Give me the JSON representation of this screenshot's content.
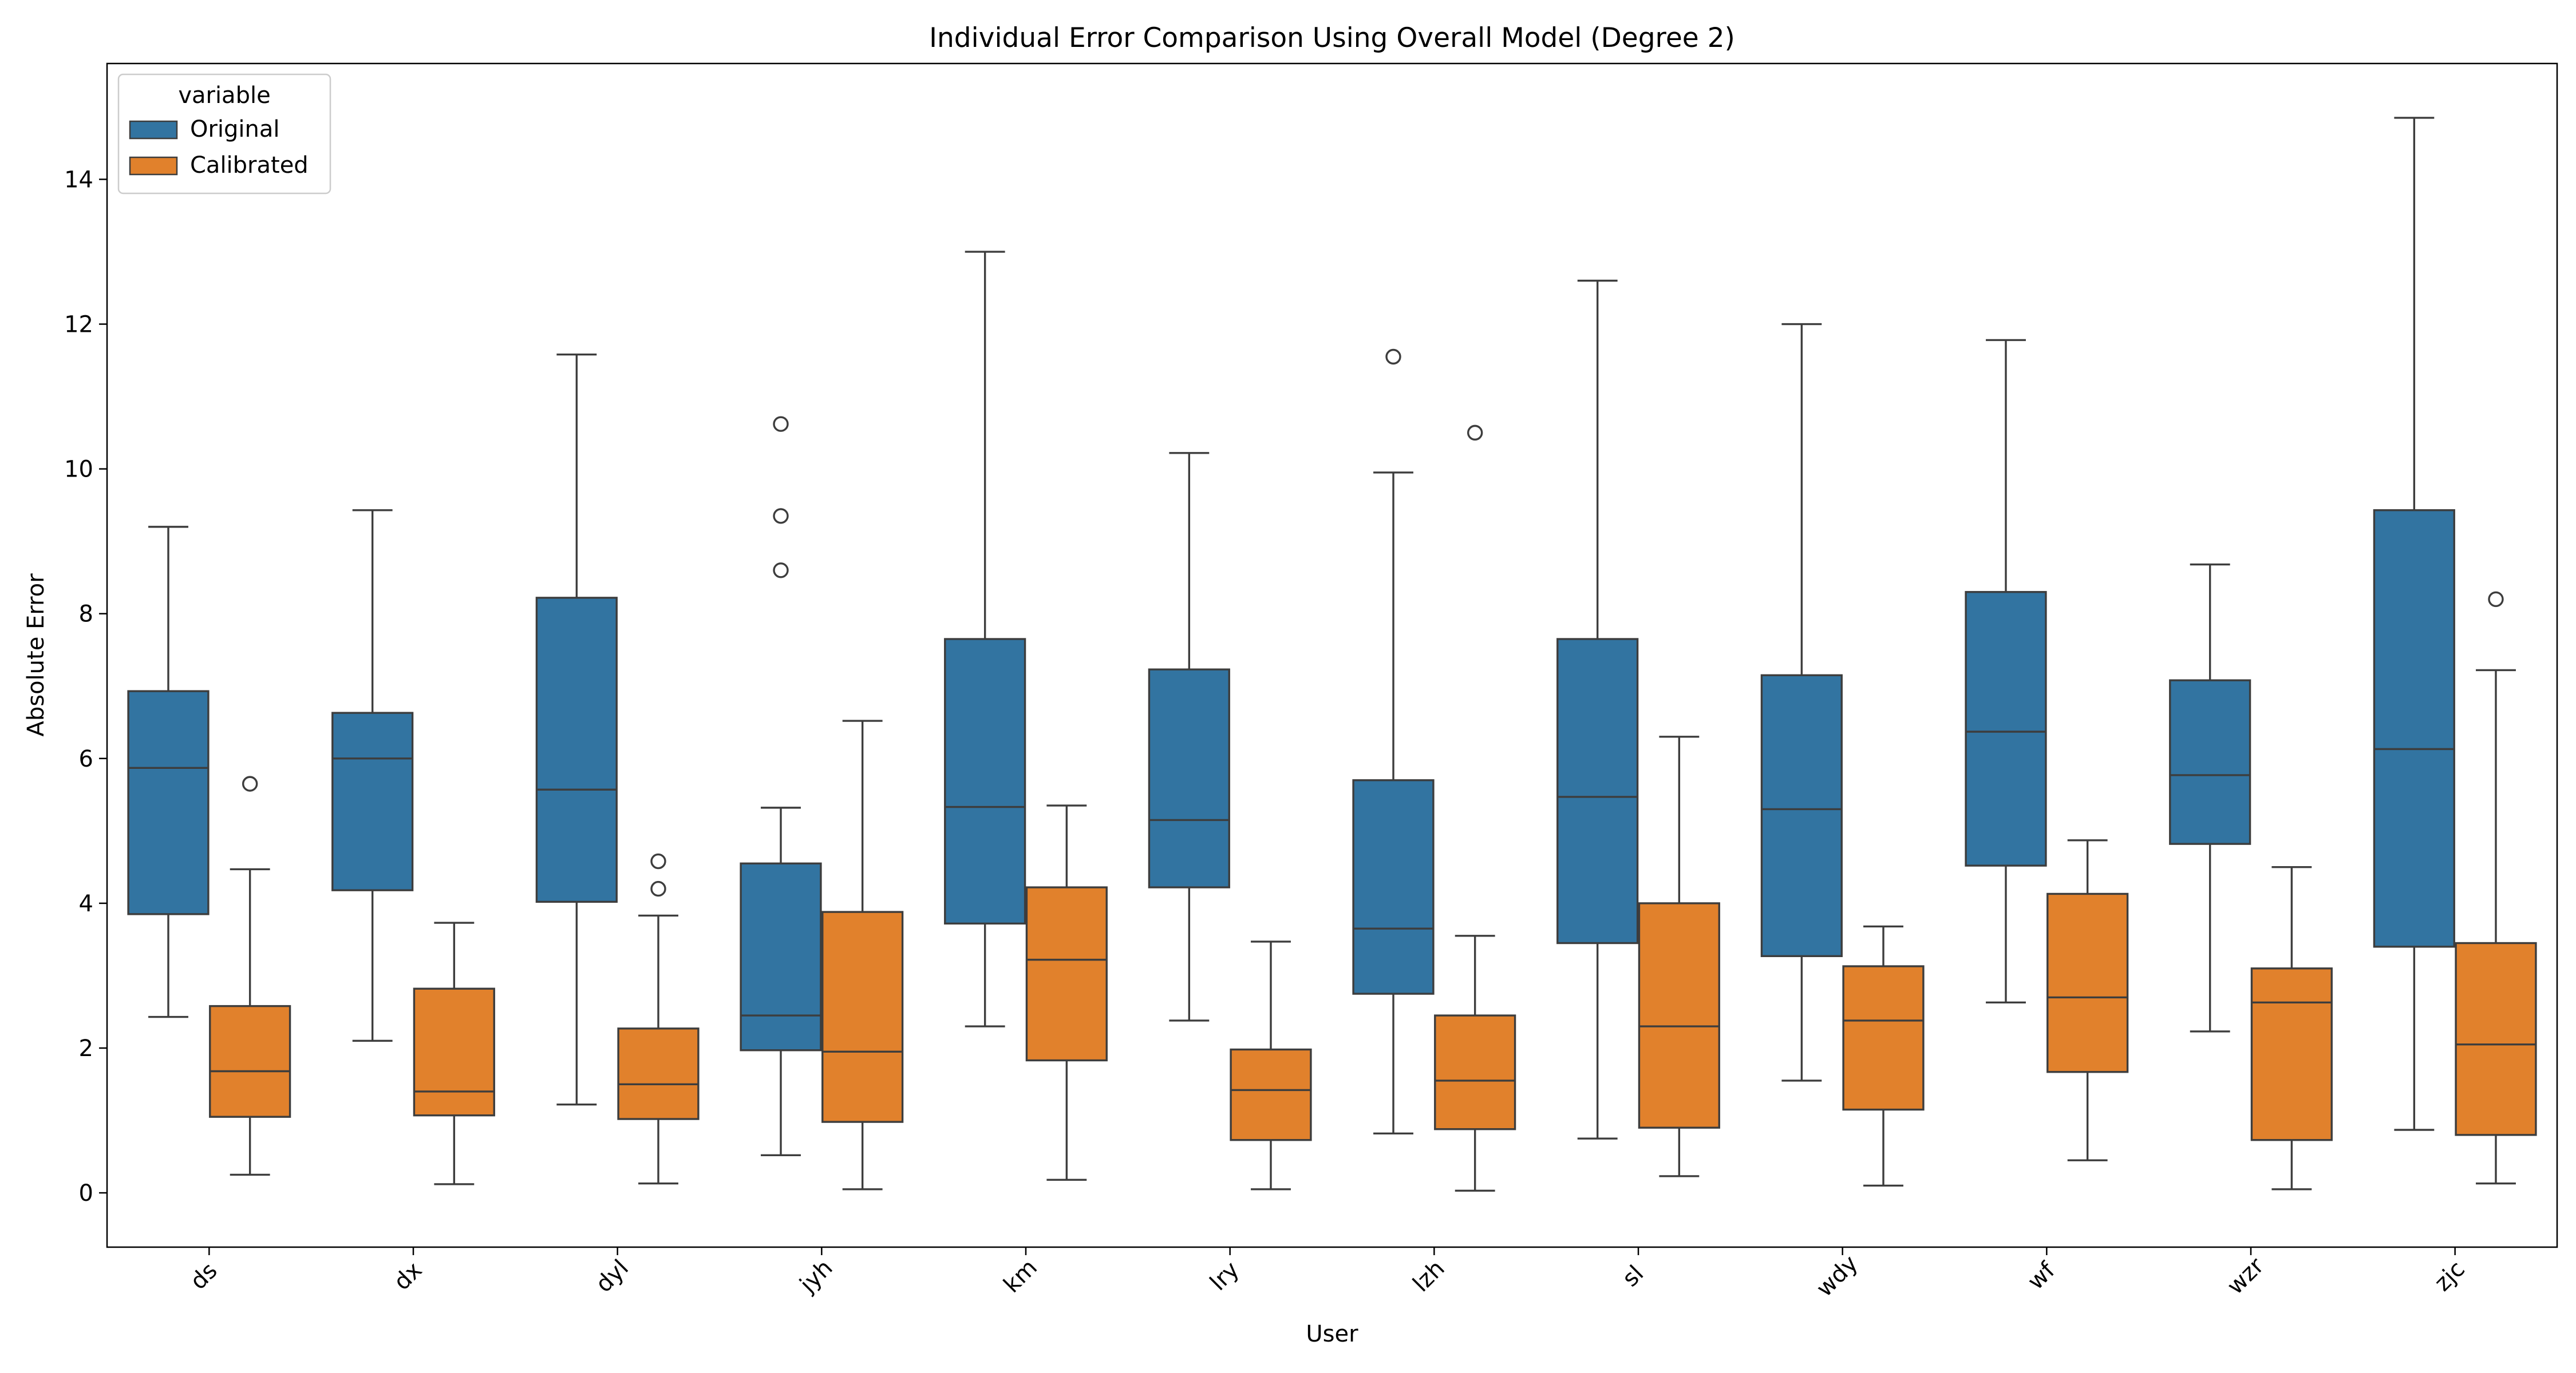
{
  "colors": {
    "Original": "#3274a1",
    "Calibrated": "#e1812c",
    "edge": "#3d3d3d"
  },
  "chart_data": {
    "type": "box",
    "title": "Individual Error Comparison Using Overall Model (Degree 2)",
    "xlabel": "User",
    "ylabel": "Absolute Error",
    "ylim": [
      -0.75,
      15.6
    ],
    "yticks": [
      0,
      2,
      4,
      6,
      8,
      10,
      12,
      14
    ],
    "ytick_labels": [
      "0",
      "2",
      "4",
      "6",
      "8",
      "10",
      "12",
      "14"
    ],
    "categories": [
      "ds",
      "dx",
      "dyl",
      "jyh",
      "km",
      "lry",
      "lzh",
      "sl",
      "wdy",
      "wf",
      "wzr",
      "zjc"
    ],
    "legend": {
      "title": "variable",
      "position": "upper left",
      "entries": [
        "Original",
        "Calibrated"
      ]
    },
    "grid": false,
    "series": [
      {
        "name": "Original",
        "boxes": [
          {
            "whislo": 2.43,
            "q1": 3.85,
            "med": 5.87,
            "q3": 6.93,
            "whishi": 9.2,
            "fliers": []
          },
          {
            "whislo": 2.1,
            "q1": 4.18,
            "med": 6.0,
            "q3": 6.63,
            "whishi": 9.43,
            "fliers": []
          },
          {
            "whislo": 1.22,
            "q1": 4.02,
            "med": 5.57,
            "q3": 8.22,
            "whishi": 11.58,
            "fliers": []
          },
          {
            "whislo": 0.52,
            "q1": 1.97,
            "med": 2.45,
            "q3": 4.55,
            "whishi": 5.32,
            "fliers": [
              8.6,
              9.35,
              10.62
            ]
          },
          {
            "whislo": 2.3,
            "q1": 3.72,
            "med": 5.33,
            "q3": 7.65,
            "whishi": 13.0,
            "fliers": []
          },
          {
            "whislo": 2.38,
            "q1": 4.22,
            "med": 5.15,
            "q3": 7.23,
            "whishi": 10.22,
            "fliers": []
          },
          {
            "whislo": 0.82,
            "q1": 2.75,
            "med": 3.65,
            "q3": 5.7,
            "whishi": 9.95,
            "fliers": [
              11.55
            ]
          },
          {
            "whislo": 0.75,
            "q1": 3.45,
            "med": 5.47,
            "q3": 7.65,
            "whishi": 12.6,
            "fliers": []
          },
          {
            "whislo": 1.55,
            "q1": 3.27,
            "med": 5.3,
            "q3": 7.15,
            "whishi": 12.0,
            "fliers": []
          },
          {
            "whislo": 2.63,
            "q1": 4.52,
            "med": 6.37,
            "q3": 8.3,
            "whishi": 11.78,
            "fliers": []
          },
          {
            "whislo": 2.23,
            "q1": 4.82,
            "med": 5.77,
            "q3": 7.08,
            "whishi": 8.68,
            "fliers": []
          },
          {
            "whislo": 0.87,
            "q1": 3.4,
            "med": 6.13,
            "q3": 9.43,
            "whishi": 14.85,
            "fliers": []
          }
        ]
      },
      {
        "name": "Calibrated",
        "boxes": [
          {
            "whislo": 0.25,
            "q1": 1.05,
            "med": 1.68,
            "q3": 2.58,
            "whishi": 4.47,
            "fliers": [
              5.65
            ]
          },
          {
            "whislo": 0.12,
            "q1": 1.07,
            "med": 1.4,
            "q3": 2.82,
            "whishi": 3.73,
            "fliers": []
          },
          {
            "whislo": 0.13,
            "q1": 1.02,
            "med": 1.5,
            "q3": 2.27,
            "whishi": 3.83,
            "fliers": [
              4.2,
              4.58
            ]
          },
          {
            "whislo": 0.05,
            "q1": 0.98,
            "med": 1.95,
            "q3": 3.88,
            "whishi": 6.52,
            "fliers": []
          },
          {
            "whislo": 0.18,
            "q1": 1.83,
            "med": 3.22,
            "q3": 4.22,
            "whishi": 5.35,
            "fliers": []
          },
          {
            "whislo": 0.05,
            "q1": 0.73,
            "med": 1.42,
            "q3": 1.98,
            "whishi": 3.47,
            "fliers": []
          },
          {
            "whislo": 0.03,
            "q1": 0.88,
            "med": 1.55,
            "q3": 2.45,
            "whishi": 3.55,
            "fliers": [
              10.5
            ]
          },
          {
            "whislo": 0.23,
            "q1": 0.9,
            "med": 2.3,
            "q3": 4.0,
            "whishi": 6.3,
            "fliers": []
          },
          {
            "whislo": 0.1,
            "q1": 1.15,
            "med": 2.38,
            "q3": 3.13,
            "whishi": 3.68,
            "fliers": []
          },
          {
            "whislo": 0.45,
            "q1": 1.67,
            "med": 2.7,
            "q3": 4.13,
            "whishi": 4.87,
            "fliers": []
          },
          {
            "whislo": 0.05,
            "q1": 0.73,
            "med": 2.63,
            "q3": 3.1,
            "whishi": 4.5,
            "fliers": []
          },
          {
            "whislo": 0.13,
            "q1": 0.8,
            "med": 2.05,
            "q3": 3.45,
            "whishi": 7.22,
            "fliers": [
              8.2
            ]
          }
        ]
      }
    ]
  }
}
